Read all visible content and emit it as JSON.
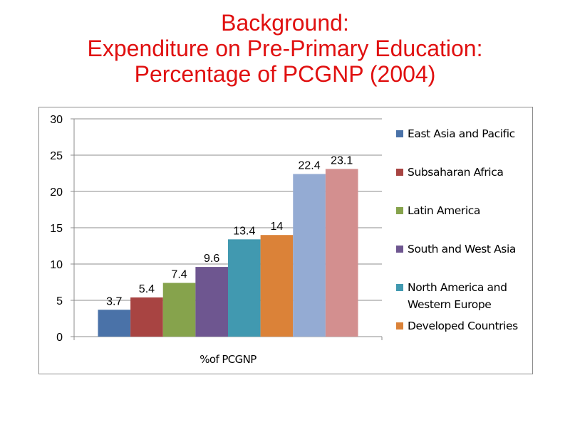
{
  "title": {
    "line1": "Background:",
    "line2": "Expenditure on Pre-Primary Education:",
    "line3": "Percentage of PCGNP (2004)",
    "color": "#e01010"
  },
  "chart_data": {
    "type": "bar",
    "categories": [
      "%of PCGNP"
    ],
    "ylim": [
      0,
      30
    ],
    "yticks": [
      "0",
      "5",
      "10",
      "15",
      "20",
      "25",
      "30"
    ],
    "grid": true,
    "legend_position": "right",
    "series": [
      {
        "name": "East Asia and Pacific",
        "values": [
          3.7
        ],
        "label": "3.7",
        "color": "#4a72a8"
      },
      {
        "name": "Subsaharan Africa",
        "values": [
          5.4
        ],
        "label": "5.4",
        "color": "#a84442"
      },
      {
        "name": "Latin America",
        "values": [
          7.4
        ],
        "label": "7.4",
        "color": "#86a34c"
      },
      {
        "name": "South and West Asia",
        "values": [
          9.6
        ],
        "label": "9.6",
        "color": "#6e5690"
      },
      {
        "name": "North America and Western Europe",
        "name_lines": [
          "North America and",
          "Western Europe"
        ],
        "values": [
          13.4
        ],
        "label": "13.4",
        "color": "#4199b0"
      },
      {
        "name": "Developed Countries",
        "values": [
          14
        ],
        "label": "14",
        "color": "#db8238"
      },
      {
        "name": "",
        "values": [
          22.4
        ],
        "label": "22.4",
        "color": "#94abd3"
      },
      {
        "name": "",
        "values": [
          23.1
        ],
        "label": "23.1",
        "color": "#d38f8f"
      }
    ]
  }
}
